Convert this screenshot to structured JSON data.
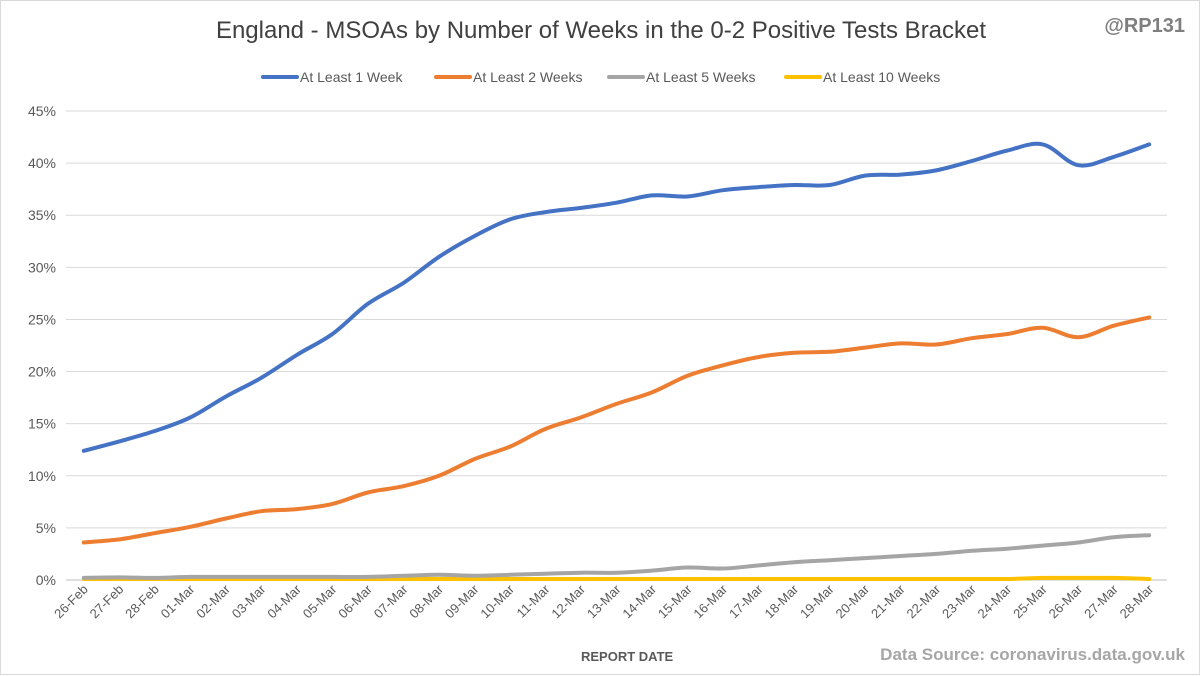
{
  "handle": "@RP131",
  "source": "Data Source: coronavirus.data.gov.uk",
  "chart_data": {
    "type": "line",
    "title": "England - MSOAs by Number of Weeks in the 0-2 Positive Tests Bracket",
    "xlabel": "REPORT DATE",
    "ylabel": "",
    "ylim": [
      0,
      45
    ],
    "yticks": [
      0,
      5,
      10,
      15,
      20,
      25,
      30,
      35,
      40,
      45
    ],
    "ytick_labels": [
      "0%",
      "5%",
      "10%",
      "15%",
      "20%",
      "25%",
      "30%",
      "35%",
      "40%",
      "45%"
    ],
    "grid": true,
    "legend_position": "top",
    "categories": [
      "26-Feb",
      "27-Feb",
      "28-Feb",
      "01-Mar",
      "02-Mar",
      "03-Mar",
      "04-Mar",
      "05-Mar",
      "06-Mar",
      "07-Mar",
      "08-Mar",
      "09-Mar",
      "10-Mar",
      "11-Mar",
      "12-Mar",
      "13-Mar",
      "14-Mar",
      "15-Mar",
      "16-Mar",
      "17-Mar",
      "18-Mar",
      "19-Mar",
      "20-Mar",
      "21-Mar",
      "22-Mar",
      "23-Mar",
      "24-Mar",
      "25-Mar",
      "26-Mar",
      "27-Mar",
      "28-Mar"
    ],
    "series": [
      {
        "name": "At Least 1 Week",
        "color": "#4472c4",
        "values": [
          12.4,
          13.3,
          14.3,
          15.6,
          17.6,
          19.4,
          21.6,
          23.6,
          26.5,
          28.5,
          31.0,
          33.0,
          34.6,
          35.3,
          35.7,
          36.2,
          36.9,
          36.8,
          37.4,
          37.7,
          37.9,
          37.9,
          38.8,
          38.9,
          39.3,
          40.2,
          41.2,
          41.8,
          39.8,
          40.6,
          41.8
        ]
      },
      {
        "name": "At Least 2 Weeks",
        "color": "#ed7d31",
        "values": [
          3.6,
          3.9,
          4.5,
          5.1,
          5.9,
          6.6,
          6.8,
          7.3,
          8.4,
          9.0,
          10.0,
          11.6,
          12.8,
          14.5,
          15.6,
          16.9,
          18.0,
          19.6,
          20.6,
          21.4,
          21.8,
          21.9,
          22.3,
          22.7,
          22.6,
          23.2,
          23.6,
          24.2,
          23.3,
          24.4,
          25.2
        ]
      },
      {
        "name": "At Least 5 Weeks",
        "color": "#a5a5a5",
        "values": [
          0.2,
          0.25,
          0.2,
          0.3,
          0.3,
          0.3,
          0.3,
          0.3,
          0.3,
          0.4,
          0.5,
          0.4,
          0.5,
          0.6,
          0.7,
          0.7,
          0.9,
          1.2,
          1.1,
          1.4,
          1.7,
          1.9,
          2.1,
          2.3,
          2.5,
          2.8,
          3.0,
          3.3,
          3.6,
          4.1,
          4.3
        ]
      },
      {
        "name": "At Least 10 Weeks",
        "color": "#ffc000",
        "values": [
          0.1,
          0.1,
          0.1,
          0.1,
          0.1,
          0.1,
          0.1,
          0.1,
          0.1,
          0.1,
          0.1,
          0.1,
          0.1,
          0.1,
          0.1,
          0.1,
          0.1,
          0.1,
          0.1,
          0.1,
          0.1,
          0.1,
          0.1,
          0.1,
          0.1,
          0.1,
          0.1,
          0.2,
          0.2,
          0.2,
          0.1
        ]
      }
    ]
  }
}
